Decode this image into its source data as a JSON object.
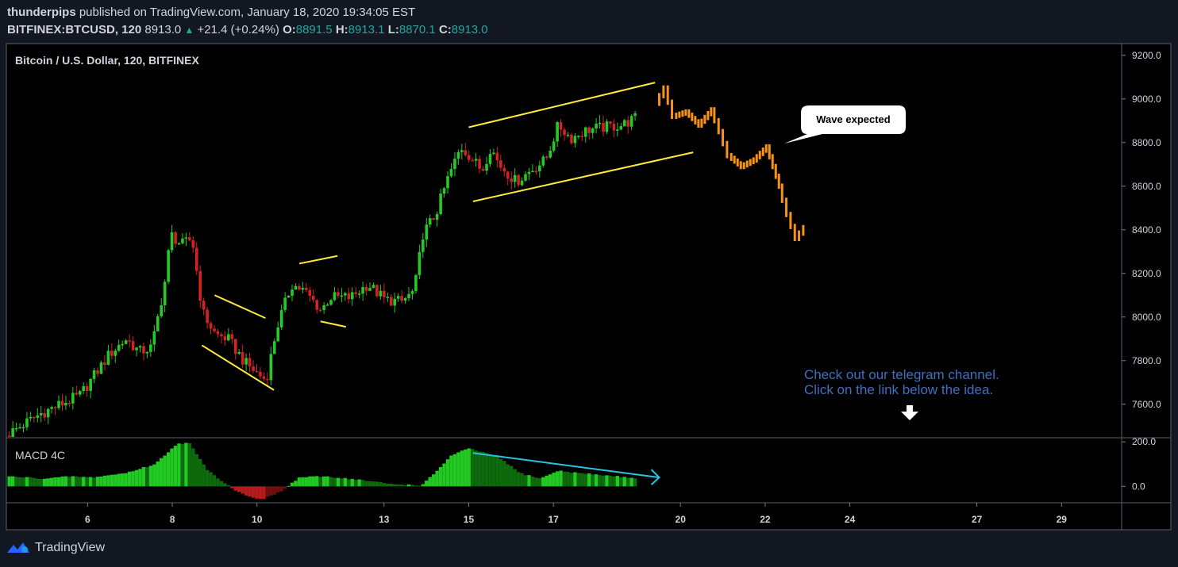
{
  "header": {
    "author": "thunderpips",
    "published": "published on TradingView.com, January 18, 2020 19:34:05 EST",
    "symbol": "BITFINEX:BTCUSD, 120",
    "last": "8913.0",
    "change": "+21.4 (+0.24%)",
    "o_label": "O:",
    "o_value": "8891.5",
    "h_label": "H:",
    "h_value": "8913.1",
    "l_label": "L:",
    "l_value": "8870.1",
    "c_label": "C:",
    "c_value": "8913.0"
  },
  "pane_title": "Bitcoin / U.S. Dollar, 120, BITFINEX",
  "macd_title": "MACD 4C",
  "callout": "Wave expected",
  "promo_line1": "Check out our telegram channel.",
  "promo_line2": "Click on the link below the idea.",
  "footer_brand": "TradingView",
  "colors": {
    "background": "#000000",
    "up": "#26c926",
    "down": "#d22222",
    "projection": "#f7931a",
    "trendline": "#ffeb3b",
    "macd_arrow": "#29c4e0",
    "promo_text": "#3f6fbf"
  },
  "chart_data": {
    "type": "candlestick",
    "title": "Bitcoin / U.S. Dollar, 120, BITFINEX",
    "ylim": [
      7450,
      9250
    ],
    "y_ticks": [
      "9200.0",
      "9000.0",
      "8800.0",
      "8600.0",
      "8400.0",
      "8200.0",
      "8000.0",
      "7800.0",
      "7600.0"
    ],
    "y_tick_values": [
      9200,
      9000,
      8800,
      8600,
      8400,
      8200,
      8000,
      7800,
      7600
    ],
    "x_ticks": [
      "6",
      "8",
      "10",
      "13",
      "15",
      "17",
      "20",
      "22",
      "24",
      "27",
      "29"
    ],
    "x_tick_days": [
      6,
      8,
      10,
      13,
      15,
      17,
      20,
      22,
      24,
      27,
      29
    ],
    "x_range_days": [
      4.1,
      30.4
    ],
    "price_path": [
      [
        4.1,
        7450
      ],
      [
        5.0,
        7560
      ],
      [
        5.9,
        7640
      ],
      [
        6.6,
        7830
      ],
      [
        7.0,
        7900
      ],
      [
        7.3,
        7840
      ],
      [
        7.6,
        7860
      ],
      [
        7.9,
        8150
      ],
      [
        8.05,
        8380
      ],
      [
        8.3,
        8330
      ],
      [
        8.55,
        8360
      ],
      [
        8.8,
        8020
      ],
      [
        9.1,
        7920
      ],
      [
        9.4,
        7900
      ],
      [
        9.8,
        7790
      ],
      [
        10.1,
        7740
      ],
      [
        10.3,
        7710
      ],
      [
        10.55,
        7950
      ],
      [
        10.9,
        8150
      ],
      [
        11.2,
        8120
      ],
      [
        11.6,
        8030
      ],
      [
        11.8,
        8090
      ],
      [
        12.3,
        8090
      ],
      [
        12.7,
        8150
      ],
      [
        13.1,
        8080
      ],
      [
        13.5,
        8070
      ],
      [
        13.8,
        8120
      ],
      [
        14.0,
        8380
      ],
      [
        14.3,
        8470
      ],
      [
        14.6,
        8640
      ],
      [
        14.9,
        8780
      ],
      [
        15.1,
        8740
      ],
      [
        15.4,
        8670
      ],
      [
        15.6,
        8780
      ],
      [
        15.8,
        8700
      ],
      [
        16.2,
        8620
      ],
      [
        16.6,
        8680
      ],
      [
        16.9,
        8720
      ],
      [
        17.2,
        8880
      ],
      [
        17.5,
        8820
      ],
      [
        17.9,
        8860
      ],
      [
        18.3,
        8870
      ],
      [
        18.7,
        8880
      ],
      [
        19.0,
        8910
      ]
    ],
    "projection": [
      [
        19.5,
        8980
      ],
      [
        19.7,
        9050
      ],
      [
        19.9,
        8920
      ],
      [
        20.2,
        8940
      ],
      [
        20.5,
        8880
      ],
      [
        20.8,
        8950
      ],
      [
        21.0,
        8850
      ],
      [
        21.2,
        8740
      ],
      [
        21.5,
        8690
      ],
      [
        21.8,
        8720
      ],
      [
        22.1,
        8780
      ],
      [
        22.4,
        8600
      ],
      [
        22.6,
        8470
      ],
      [
        22.8,
        8360
      ],
      [
        23.0,
        8410
      ]
    ],
    "trendlines": [
      {
        "name": "channel-upper",
        "points": [
          [
            15.0,
            8870
          ],
          [
            19.4,
            9075
          ]
        ]
      },
      {
        "name": "channel-lower",
        "points": [
          [
            15.1,
            8530
          ],
          [
            20.3,
            8755
          ]
        ]
      },
      {
        "name": "flag1-upper",
        "points": [
          [
            9.0,
            8100
          ],
          [
            10.2,
            7995
          ]
        ]
      },
      {
        "name": "flag1-lower",
        "points": [
          [
            8.7,
            7870
          ],
          [
            10.4,
            7665
          ]
        ]
      },
      {
        "name": "flag2-upper",
        "points": [
          [
            11.0,
            8245
          ],
          [
            11.9,
            8280
          ]
        ]
      },
      {
        "name": "flag2-lower",
        "points": [
          [
            11.5,
            7980
          ],
          [
            12.1,
            7955
          ]
        ]
      }
    ],
    "macd": {
      "title": "MACD 4C",
      "y_ticks": [
        "200.0",
        "0.0"
      ],
      "y_tick_values": [
        200,
        0
      ],
      "ylim": [
        -70,
        215
      ],
      "path": [
        [
          4.1,
          45
        ],
        [
          5.0,
          35
        ],
        [
          5.6,
          45
        ],
        [
          6.1,
          40
        ],
        [
          6.9,
          60
        ],
        [
          7.6,
          100
        ],
        [
          8.1,
          190
        ],
        [
          8.4,
          195
        ],
        [
          8.8,
          80
        ],
        [
          9.2,
          20
        ],
        [
          9.6,
          -30
        ],
        [
          10.1,
          -60
        ],
        [
          10.6,
          -20
        ],
        [
          11.0,
          40
        ],
        [
          11.6,
          45
        ],
        [
          12.4,
          30
        ],
        [
          13.2,
          10
        ],
        [
          13.9,
          5
        ],
        [
          14.2,
          60
        ],
        [
          14.6,
          140
        ],
        [
          15.0,
          170
        ],
        [
          15.4,
          150
        ],
        [
          15.8,
          120
        ],
        [
          16.2,
          60
        ],
        [
          16.7,
          35
        ],
        [
          17.1,
          70
        ],
        [
          17.6,
          60
        ],
        [
          18.2,
          50
        ],
        [
          18.8,
          40
        ],
        [
          19.0,
          35
        ]
      ],
      "divergence_arrow": [
        [
          15.1,
          150
        ],
        [
          19.5,
          40
        ]
      ]
    }
  }
}
